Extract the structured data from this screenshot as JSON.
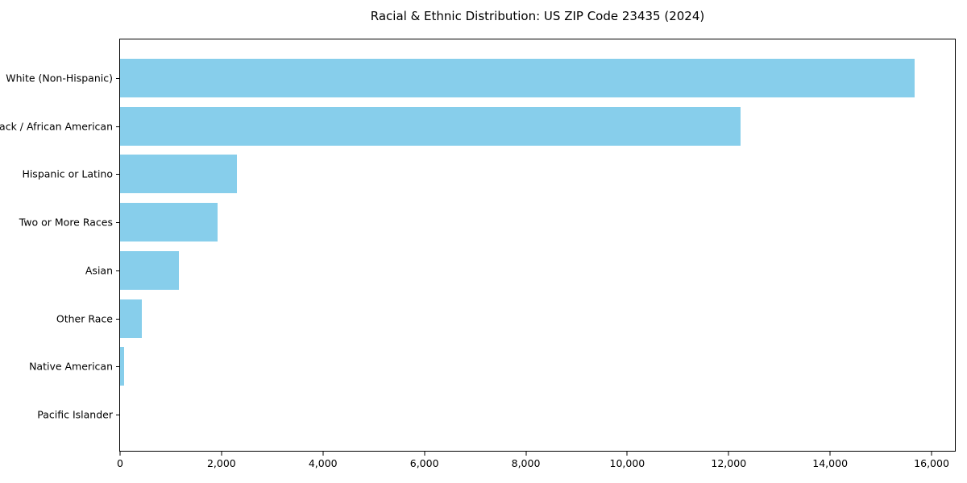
{
  "chart_data": {
    "type": "bar",
    "orientation": "horizontal",
    "title": "Racial & Ethnic Distribution: US ZIP Code 23435 (2024)",
    "categories": [
      "White (Non-Hispanic)",
      "Black / African American",
      "Hispanic or Latino",
      "Two or More Races",
      "Asian",
      "Other Race",
      "Native American",
      "Pacific Islander"
    ],
    "values": [
      15670,
      12230,
      2300,
      1920,
      1160,
      430,
      80,
      0
    ],
    "xlabel": "",
    "ylabel": "",
    "xlim": [
      0,
      16460
    ],
    "xticks": [
      {
        "value": 0,
        "label": "0"
      },
      {
        "value": 2000,
        "label": "2,000"
      },
      {
        "value": 4000,
        "label": "4,000"
      },
      {
        "value": 6000,
        "label": "6,000"
      },
      {
        "value": 8000,
        "label": "8,000"
      },
      {
        "value": 10000,
        "label": "10,000"
      },
      {
        "value": 12000,
        "label": "12,000"
      },
      {
        "value": 14000,
        "label": "14,000"
      },
      {
        "value": 16000,
        "label": "16,000"
      }
    ],
    "bar_color": "#87CEEB",
    "grid": false,
    "legend": "none",
    "background_color": "#ffffff",
    "text_color": "#000000"
  }
}
